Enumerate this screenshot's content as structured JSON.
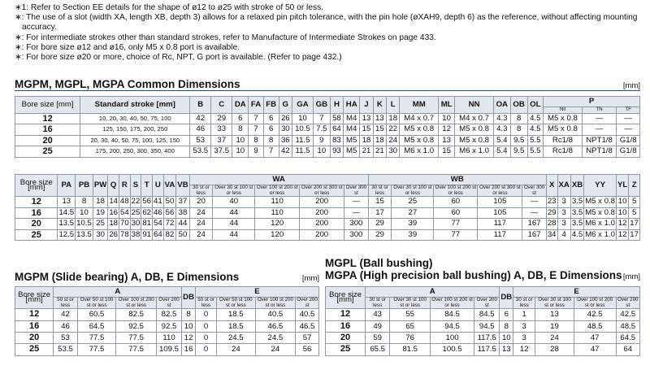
{
  "notes": [
    "∗1: Refer to Section EE details for the shape of ø12 to ø25 with stroke of 50 or less.",
    "∗: The use of a slot (width XA, length XB, depth 3) allows for a relaxed pin pitch tolerance, with the pin hole (øXAH9, depth 6) as the reference, without affecting mounting accuracy.",
    "∗: For intermediate strokes other than standard strokes, refer to Manufacture of Intermediate Strokes on page 433.",
    "∗: For bore size ø12 and ø16, only M5 x 0.8 port is available.",
    "∗: For bore size ø20 or more, choice of Rc, NPT, G port is available. (Refer to page 432.)"
  ],
  "common": {
    "title": "MGPM, MGPL, MGPA Common Dimensions",
    "unit": "[mm]",
    "table1": {
      "head": [
        "Bore size [mm]",
        "Standard stroke [mm]",
        "B",
        "C",
        "DA",
        "FA",
        "FB",
        "G",
        "GA",
        "GB",
        "H",
        "HA",
        "J",
        "K",
        "L",
        "MM",
        "ML",
        "NN",
        "OA",
        "OB",
        "OL",
        "P"
      ],
      "subhead": [
        "Nil",
        "TN",
        "TF"
      ],
      "rows": [
        [
          "12",
          "10, 20, 30, 40, 50, 75, 100",
          "42",
          "29",
          "6",
          "7",
          "6",
          "26",
          "10",
          "7",
          "58",
          "M4",
          "13",
          "13",
          "18",
          "M4 x 0.7",
          "10",
          "M4 x 0.7",
          "4.3",
          "8",
          "4.5",
          "M5 x 0.8",
          "—",
          "—"
        ],
        [
          "16",
          "125, 150, 175, 200, 250",
          "46",
          "33",
          "8",
          "7",
          "6",
          "30",
          "10.5",
          "7.5",
          "64",
          "M4",
          "15",
          "15",
          "22",
          "M5 x 0.8",
          "12",
          "M5 x 0.8",
          "4.3",
          "8",
          "4.5",
          "M5 x 0.8",
          "—",
          "—"
        ],
        [
          "20",
          "20, 30, 40, 50, 75, 100, 125, 150",
          "53",
          "37",
          "10",
          "8",
          "8",
          "36",
          "11.5",
          "9",
          "83",
          "M5",
          "18",
          "18",
          "24",
          "M5 x 0.8",
          "13",
          "M5 x 0.8",
          "5.4",
          "9.5",
          "5.5",
          "Rc1/8",
          "NPT1/8",
          "G1/8"
        ],
        [
          "25",
          "175, 200, 250, 300, 350, 400",
          "53.5",
          "37.5",
          "10",
          "9",
          "7",
          "42",
          "11.5",
          "10",
          "93",
          "M5",
          "21",
          "21",
          "30",
          "M6 x 1.0",
          "15",
          "M6 x 1.0",
          "5.4",
          "9.5",
          "5.5",
          "Rc1/8",
          "NPT1/8",
          "G1/8"
        ]
      ]
    },
    "table2": {
      "head": [
        "Bore size [mm]",
        "PA",
        "PB",
        "PW",
        "Q",
        "R",
        "S",
        "T",
        "U",
        "VA",
        "VB",
        "WA",
        "WB",
        "X",
        "XA",
        "XB",
        "YY",
        "YL",
        "Z"
      ],
      "subhead": [
        "30 st or less",
        "Over 30 st 100 st or less",
        "Over 100 st 200 st or less",
        "Over 200 st 300 st or less",
        "Over 300 st",
        "30 st or less",
        "Over 30 st 100 st or less",
        "Over 100 st 200 st or less",
        "Over 200 st 300 st or less",
        "Over 300 st"
      ],
      "rows": [
        [
          "12",
          "13",
          "8",
          "18",
          "14",
          "48",
          "22",
          "56",
          "41",
          "50",
          "37",
          "20",
          "40",
          "110",
          "200",
          "—",
          "15",
          "25",
          "60",
          "105",
          "—",
          "23",
          "3",
          "3.5",
          "M5 x 0.8",
          "10",
          "5"
        ],
        [
          "16",
          "14.5",
          "10",
          "19",
          "16",
          "54",
          "25",
          "62",
          "46",
          "56",
          "38",
          "24",
          "44",
          "110",
          "200",
          "—",
          "17",
          "27",
          "60",
          "105",
          "—",
          "29",
          "3",
          "3.5",
          "M5 x 0.8",
          "10",
          "5"
        ],
        [
          "20",
          "13.5",
          "10.5",
          "25",
          "18",
          "70",
          "30",
          "81",
          "54",
          "72",
          "44",
          "24",
          "44",
          "120",
          "200",
          "300",
          "29",
          "39",
          "77",
          "117",
          "167",
          "28",
          "3",
          "3.5",
          "M6 x 1.0",
          "12",
          "17"
        ],
        [
          "25",
          "12.5",
          "13.5",
          "30",
          "26",
          "78",
          "38",
          "91",
          "64",
          "82",
          "50",
          "24",
          "44",
          "120",
          "200",
          "300",
          "29",
          "39",
          "77",
          "117",
          "167",
          "34",
          "4",
          "4.5",
          "M6 x 1.0",
          "12",
          "17"
        ]
      ]
    }
  },
  "slide": {
    "title": "MGPM (Slide bearing) A, DB, E Dimensions",
    "unit": "[mm]",
    "head": [
      "Bore size [mm]",
      "A",
      "DB",
      "E"
    ],
    "subhead": [
      "50 st or less",
      "Over 50 st 100 st or less",
      "Over 100 st 200 st or less",
      "Over 200 st",
      "50 st or less",
      "Over 50 st 100 st or less",
      "Over 100 st 200 st or less",
      "Over 200 st"
    ],
    "rows": [
      [
        "12",
        "42",
        "60.5",
        "82.5",
        "82.5",
        "8",
        "0",
        "18.5",
        "40.5",
        "40.5"
      ],
      [
        "16",
        "46",
        "64.5",
        "92.5",
        "92.5",
        "10",
        "0",
        "18.5",
        "46.5",
        "46.5"
      ],
      [
        "20",
        "53",
        "77.5",
        "77.5",
        "110",
        "12",
        "0",
        "24.5",
        "24.5",
        "57"
      ],
      [
        "25",
        "53.5",
        "77.5",
        "77.5",
        "109.5",
        "16",
        "0",
        "24",
        "24",
        "56"
      ]
    ]
  },
  "ball": {
    "title1": "MGPL (Ball bushing)",
    "title2": "MGPA (High precision ball bushing) A, DB, E Dimensions",
    "unit": "[mm]",
    "head": [
      "Bore size [mm]",
      "A",
      "DB",
      "E"
    ],
    "subhead": [
      "30 st or less",
      "Over 30 st 100 st or less",
      "Over 100 st 200 st or less",
      "Over 200 st",
      "30 st or less",
      "Over 30 st 100 st or less",
      "Over 100 st 200 st or less",
      "Over 200 st"
    ],
    "rows": [
      [
        "12",
        "43",
        "55",
        "84.5",
        "84.5",
        "6",
        "1",
        "13",
        "42.5",
        "42.5"
      ],
      [
        "16",
        "49",
        "65",
        "94.5",
        "94.5",
        "8",
        "3",
        "19",
        "48.5",
        "48.5"
      ],
      [
        "20",
        "59",
        "76",
        "100",
        "117.5",
        "10",
        "3",
        "24",
        "47",
        "64.5"
      ],
      [
        "25",
        "65.5",
        "81.5",
        "100.5",
        "117.5",
        "13",
        "12",
        "28",
        "47",
        "64"
      ]
    ]
  }
}
